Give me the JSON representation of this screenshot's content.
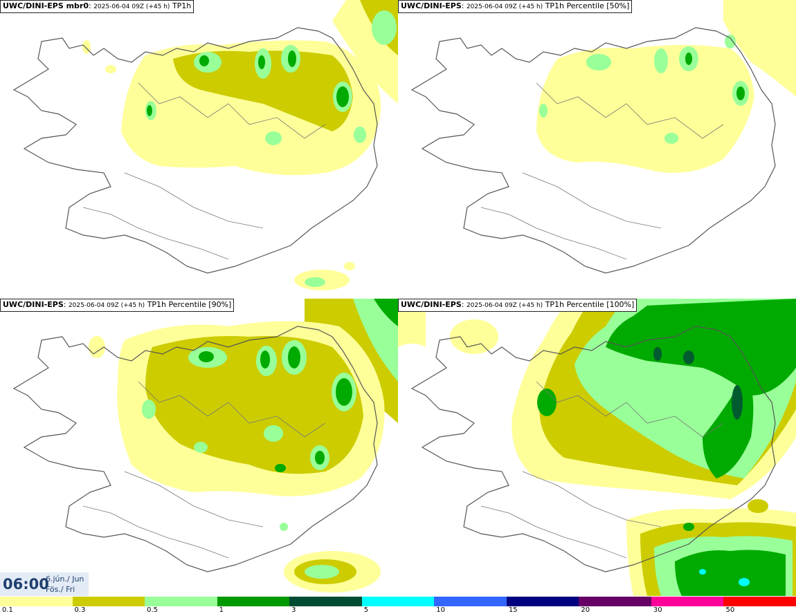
{
  "panels": [
    {
      "bold": "UWC/DINI-EPS mbr0",
      "run": "2025-06-04 09Z (+45 h)",
      "product": "TP1h"
    },
    {
      "bold": "UWC/DINI-EPS",
      "run": "2025-06-04 09Z (+45 h)",
      "product": "TP1h Percentile [50%]"
    },
    {
      "bold": "UWC/DINI-EPS",
      "run": "2025-06-04 09Z (+45 h)",
      "product": "TP1h Percentile [90%]"
    },
    {
      "bold": "UWC/DINI-EPS",
      "run": "2025-06-04 09Z (+45 h)",
      "product": "TP1h Percentile [100%]"
    }
  ],
  "valid_time": {
    "time": "06:00",
    "date_line1": "6.jún./ Jun",
    "date_line2": "Fös./ Fri"
  },
  "legend": {
    "labels": [
      "0.1",
      "0.3",
      "0.5",
      "1",
      "3",
      "5",
      "10",
      "15",
      "20",
      "30",
      "50"
    ],
    "colors": [
      "#ffff99",
      "#cccc00",
      "#99ff99",
      "#009900",
      "#004d33",
      "#00ffff",
      "#3366ff",
      "#000080",
      "#660066",
      "#ff0099",
      "#ff0000"
    ]
  },
  "colors": {
    "very_light": "#ffff99",
    "light": "#cccc00",
    "moderate": "#99ff99",
    "heavy": "#00aa00",
    "very_heavy": "#005c2e",
    "extreme": "#00ffff",
    "coastline": "#555555"
  }
}
